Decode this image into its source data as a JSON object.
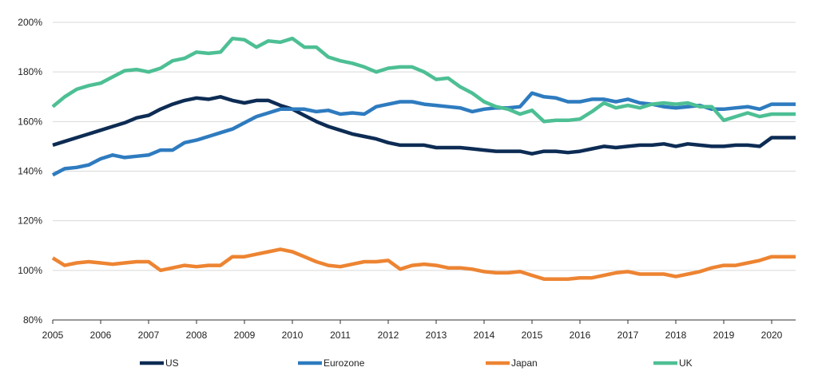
{
  "chart_data": {
    "type": "line",
    "title": "",
    "xlabel": "",
    "ylabel": "",
    "xlim": [
      2005,
      2020.5
    ],
    "ylim": [
      80,
      200
    ],
    "y_ticks": [
      80,
      100,
      120,
      140,
      160,
      180,
      200
    ],
    "y_tick_labels": [
      "80%",
      "100%",
      "120%",
      "140%",
      "160%",
      "180%",
      "200%"
    ],
    "x_ticks": [
      2005,
      2006,
      2007,
      2008,
      2009,
      2010,
      2011,
      2012,
      2013,
      2014,
      2015,
      2016,
      2017,
      2018,
      2019,
      2020
    ],
    "x_tick_labels": [
      "2005",
      "2006",
      "2007",
      "2008",
      "2009",
      "2010",
      "2011",
      "2012",
      "2013",
      "2014",
      "2015",
      "2016",
      "2017",
      "2018",
      "2019",
      "2020"
    ],
    "grid": true,
    "legend_position": "bottom",
    "series": [
      {
        "name": "US",
        "color": "#0d2c54",
        "x": [
          2005,
          2005.25,
          2005.5,
          2005.75,
          2006,
          2006.25,
          2006.5,
          2006.75,
          2007,
          2007.25,
          2007.5,
          2007.75,
          2008,
          2008.25,
          2008.5,
          2008.75,
          2009,
          2009.25,
          2009.5,
          2009.75,
          2010,
          2010.25,
          2010.5,
          2010.75,
          2011,
          2011.25,
          2011.5,
          2011.75,
          2012,
          2012.25,
          2012.5,
          2012.75,
          2013,
          2013.25,
          2013.5,
          2013.75,
          2014,
          2014.25,
          2014.5,
          2014.75,
          2015,
          2015.25,
          2015.5,
          2015.75,
          2016,
          2016.25,
          2016.5,
          2016.75,
          2017,
          2017.25,
          2017.5,
          2017.75,
          2018,
          2018.25,
          2018.5,
          2018.75,
          2019,
          2019.25,
          2019.5,
          2019.75,
          2020,
          2020.25,
          2020.5
        ],
        "values": [
          150.5,
          152,
          153.5,
          155,
          156.5,
          158,
          159.5,
          161.5,
          162.5,
          165,
          167,
          168.5,
          169.5,
          169,
          170,
          168.5,
          167.5,
          168.5,
          168.5,
          166.5,
          165,
          162.5,
          160,
          158,
          156.5,
          155,
          154,
          153,
          151.5,
          150.5,
          150.5,
          150.5,
          149.5,
          149.5,
          149.5,
          149,
          148.5,
          148,
          148,
          148,
          147,
          148,
          148,
          147.5,
          148,
          149,
          150,
          149.5,
          150,
          150.5,
          150.5,
          151,
          150,
          151,
          150.5,
          150,
          150,
          150.5,
          150.5,
          150,
          153.5,
          153.5,
          153.5
        ]
      },
      {
        "name": "Eurozone",
        "color": "#2e7bbf",
        "x": [
          2005,
          2005.25,
          2005.5,
          2005.75,
          2006,
          2006.25,
          2006.5,
          2006.75,
          2007,
          2007.25,
          2007.5,
          2007.75,
          2008,
          2008.25,
          2008.5,
          2008.75,
          2009,
          2009.25,
          2009.5,
          2009.75,
          2010,
          2010.25,
          2010.5,
          2010.75,
          2011,
          2011.25,
          2011.5,
          2011.75,
          2012,
          2012.25,
          2012.5,
          2012.75,
          2013,
          2013.25,
          2013.5,
          2013.75,
          2014,
          2014.25,
          2014.5,
          2014.75,
          2015,
          2015.25,
          2015.5,
          2015.75,
          2016,
          2016.25,
          2016.5,
          2016.75,
          2017,
          2017.25,
          2017.5,
          2017.75,
          2018,
          2018.25,
          2018.5,
          2018.75,
          2019,
          2019.25,
          2019.5,
          2019.75,
          2020,
          2020.25,
          2020.5
        ],
        "values": [
          138.5,
          141,
          141.5,
          142.5,
          145,
          146.5,
          145.5,
          146,
          146.5,
          148.5,
          148.5,
          151.5,
          152.5,
          154,
          155.5,
          157,
          159.5,
          162,
          163.5,
          165,
          165,
          165,
          164,
          164.5,
          163,
          163.5,
          163,
          166,
          167,
          168,
          168,
          167,
          166.5,
          166,
          165.5,
          164,
          165,
          165.5,
          165.5,
          166,
          171.5,
          170,
          169.5,
          168,
          168,
          169,
          169,
          168,
          169,
          167.5,
          167,
          166,
          165.5,
          166,
          166.5,
          165,
          165,
          165.5,
          166,
          165,
          167,
          167,
          167
        ]
      },
      {
        "name": "Japan",
        "color": "#ed8432",
        "x": [
          2005,
          2005.25,
          2005.5,
          2005.75,
          2006,
          2006.25,
          2006.5,
          2006.75,
          2007,
          2007.25,
          2007.5,
          2007.75,
          2008,
          2008.25,
          2008.5,
          2008.75,
          2009,
          2009.25,
          2009.5,
          2009.75,
          2010,
          2010.25,
          2010.5,
          2010.75,
          2011,
          2011.25,
          2011.5,
          2011.75,
          2012,
          2012.25,
          2012.5,
          2012.75,
          2013,
          2013.25,
          2013.5,
          2013.75,
          2014,
          2014.25,
          2014.5,
          2014.75,
          2015,
          2015.25,
          2015.5,
          2015.75,
          2016,
          2016.25,
          2016.5,
          2016.75,
          2017,
          2017.25,
          2017.5,
          2017.75,
          2018,
          2018.25,
          2018.5,
          2018.75,
          2019,
          2019.25,
          2019.5,
          2019.75,
          2020,
          2020.25,
          2020.5
        ],
        "values": [
          105,
          102,
          103,
          103.5,
          103,
          102.5,
          103,
          103.5,
          103.5,
          100,
          101,
          102,
          101.5,
          102,
          102,
          105.5,
          105.5,
          106.5,
          107.5,
          108.5,
          107.5,
          105.5,
          103.5,
          102,
          101.5,
          102.5,
          103.5,
          103.5,
          104,
          100.5,
          102,
          102.5,
          102,
          101,
          101,
          100.5,
          99.5,
          99,
          99,
          99.5,
          98,
          96.5,
          96.5,
          96.5,
          97,
          97,
          98,
          99,
          99.5,
          98.5,
          98.5,
          98.5,
          97.5,
          98.5,
          99.5,
          101,
          102,
          102,
          103,
          104,
          105.5,
          105.5,
          105.5
        ]
      },
      {
        "name": "UK",
        "color": "#4dbf94",
        "x": [
          2005,
          2005.25,
          2005.5,
          2005.75,
          2006,
          2006.25,
          2006.5,
          2006.75,
          2007,
          2007.25,
          2007.5,
          2007.75,
          2008,
          2008.25,
          2008.5,
          2008.75,
          2009,
          2009.25,
          2009.5,
          2009.75,
          2010,
          2010.25,
          2010.5,
          2010.75,
          2011,
          2011.25,
          2011.5,
          2011.75,
          2012,
          2012.25,
          2012.5,
          2012.75,
          2013,
          2013.25,
          2013.5,
          2013.75,
          2014,
          2014.25,
          2014.5,
          2014.75,
          2015,
          2015.25,
          2015.5,
          2015.75,
          2016,
          2016.25,
          2016.5,
          2016.75,
          2017,
          2017.25,
          2017.5,
          2017.75,
          2018,
          2018.25,
          2018.5,
          2018.75,
          2019,
          2019.25,
          2019.5,
          2019.75,
          2020,
          2020.25,
          2020.5
        ],
        "values": [
          166,
          170,
          173,
          174.5,
          175.5,
          178,
          180.5,
          181,
          180,
          181.5,
          184.5,
          185.5,
          188,
          187.5,
          188,
          193.5,
          193,
          190,
          192.5,
          192,
          193.5,
          190,
          190,
          186,
          184.5,
          183.5,
          182,
          180,
          181.5,
          182,
          182,
          180,
          177,
          177.5,
          174,
          171.5,
          168,
          166,
          165,
          163,
          164.5,
          160,
          160.5,
          160.5,
          161,
          164,
          167.5,
          165.5,
          166.5,
          165.5,
          167,
          167.5,
          167,
          167.5,
          166,
          166,
          160.5,
          162,
          163.5,
          162,
          163,
          163,
          163
        ]
      }
    ]
  }
}
